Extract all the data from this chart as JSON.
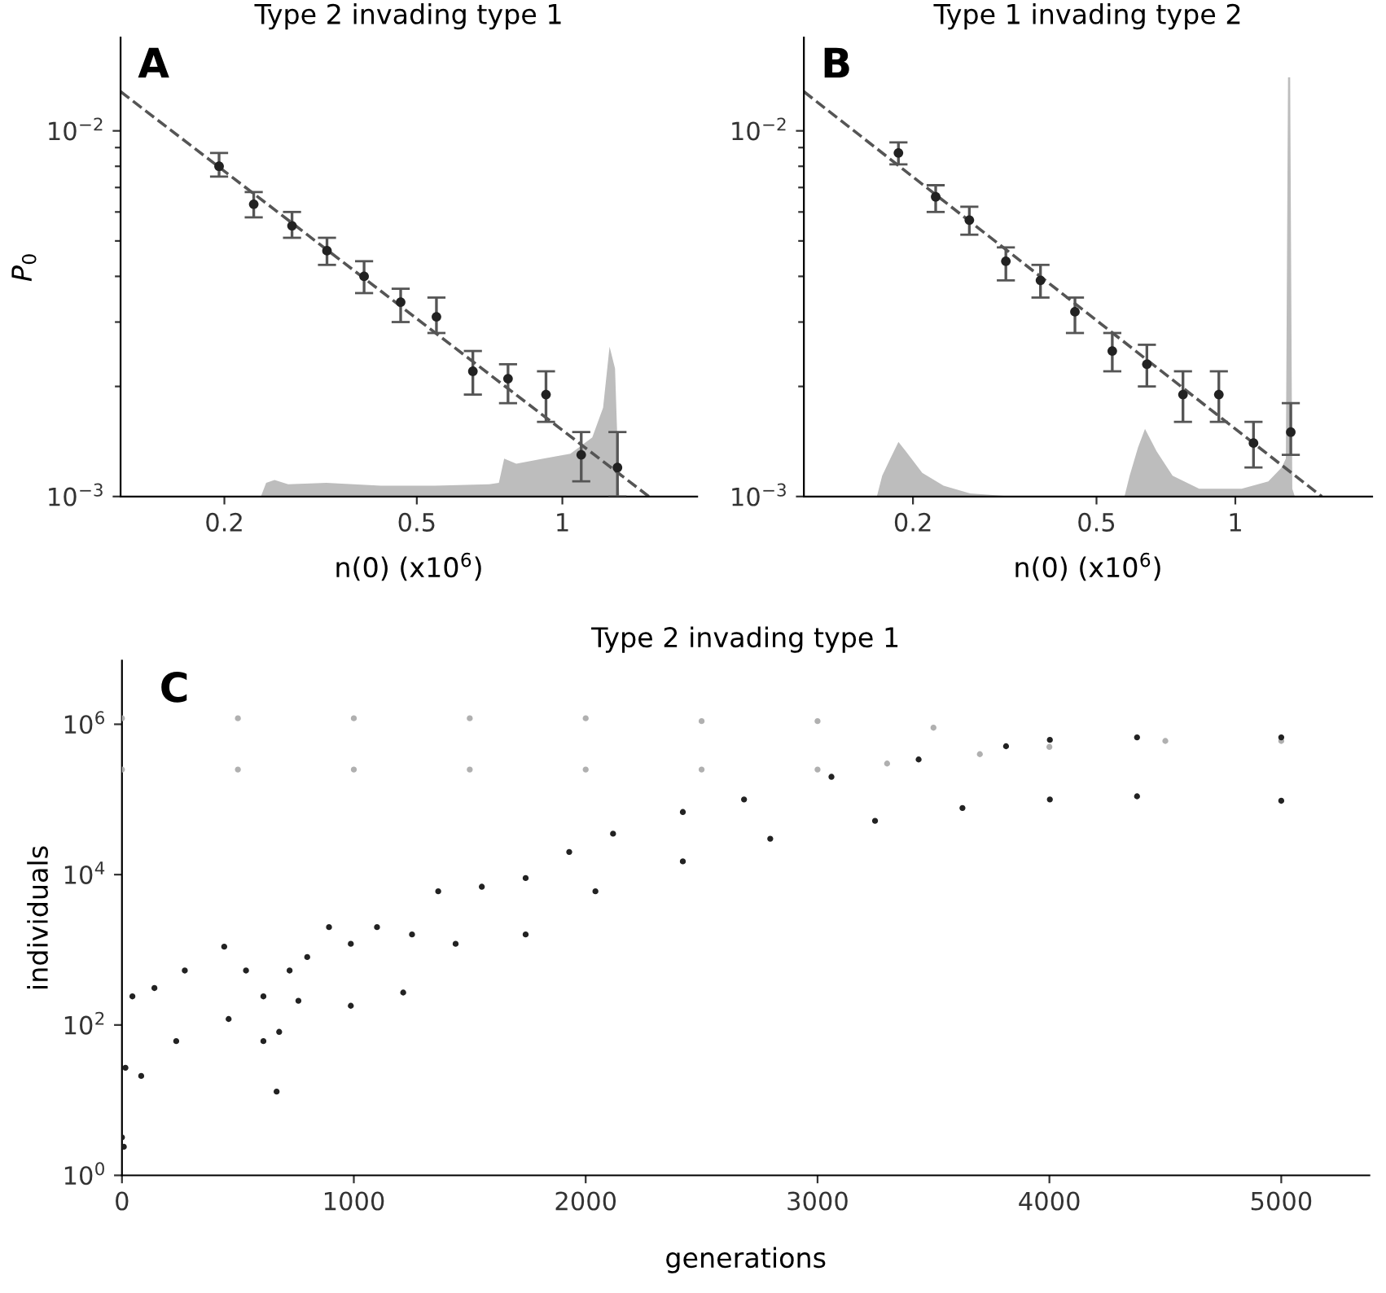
{
  "chart_data": [
    {
      "type": "scatter",
      "title": "Type 2 invading type 1",
      "xlabel": "n(0) (x10$^{6}$)",
      "ylabel": "P$_{0}$",
      "annotations": [
        "A"
      ],
      "log": "xy",
      "xlim": [
        0.122,
        1.9
      ],
      "ylim": [
        0.001,
        0.018
      ],
      "xticks": [
        0.2,
        0.5,
        1
      ],
      "yticks": [
        {
          "value": 0.001,
          "label": "10$^{−3}$"
        },
        {
          "value": 0.002,
          "label": null
        },
        {
          "value": 0.003,
          "label": null
        },
        {
          "value": 0.004,
          "label": null
        },
        {
          "value": 0.005,
          "label": null
        },
        {
          "value": 0.006,
          "label": null
        },
        {
          "value": 0.007,
          "label": null
        },
        {
          "value": 0.008,
          "label": null
        },
        {
          "value": 0.009,
          "label": null
        },
        {
          "value": 0.01,
          "label": "10$^{−2}$"
        }
      ],
      "series": [
        {
          "type": "area",
          "color": "#bdbdbd",
          "x": [
            0.238,
            0.244,
            0.254,
            0.271,
            0.325,
            0.421,
            0.545,
            0.706,
            0.739,
            0.758,
            0.803,
            0.913,
            1.039,
            1.153,
            1.214,
            1.252,
            1.285,
            1.311
          ],
          "values": [
            0.001,
            0.00109,
            0.00111,
            0.00108,
            0.00109,
            0.00107,
            0.00107,
            0.00108,
            0.00109,
            0.00127,
            0.00123,
            0.00127,
            0.00131,
            0.00145,
            0.00175,
            0.00257,
            0.00224,
            0.001
          ]
        },
        {
          "type": "line",
          "color": "#555555",
          "line_style": "dashed",
          "x": [
            0.122,
            1.51
          ],
          "values": [
            0.0128,
            0.001
          ]
        },
        {
          "color": "#222222",
          "marker": "circle",
          "x": [
            0.195,
            0.23,
            0.276,
            0.326,
            0.389,
            0.463,
            0.549,
            0.653,
            0.772,
            0.925,
            1.094,
            1.3
          ],
          "values": [
            0.008,
            0.0063,
            0.0055,
            0.0047,
            0.004,
            0.0034,
            0.0031,
            0.0022,
            0.0021,
            0.0019,
            0.0013,
            0.0012
          ],
          "errors": [
            [
              0.0075,
              0.0087
            ],
            [
              0.0058,
              0.0068
            ],
            [
              0.0051,
              0.006
            ],
            [
              0.0043,
              0.0051
            ],
            [
              0.0036,
              0.0044
            ],
            [
              0.003,
              0.0037
            ],
            [
              0.0028,
              0.0035
            ],
            [
              0.0019,
              0.0025
            ],
            [
              0.0018,
              0.0023
            ],
            [
              0.0016,
              0.0022
            ],
            [
              0.0011,
              0.0015
            ],
            [
              0.001,
              0.0015
            ]
          ]
        }
      ]
    },
    {
      "type": "scatter",
      "title": "Type 1 invading type 2",
      "xlabel": "n(0) (x10$^{6}$)",
      "annotations": [
        "B"
      ],
      "log": "xy",
      "xlim": [
        0.116,
        1.98
      ],
      "ylim": [
        0.001,
        0.018
      ],
      "xticks": [
        0.2,
        0.5,
        1
      ],
      "yticks": [
        {
          "value": 0.001,
          "label": "10$^{−3}$"
        },
        {
          "value": 0.002,
          "label": null
        },
        {
          "value": 0.003,
          "label": null
        },
        {
          "value": 0.004,
          "label": null
        },
        {
          "value": 0.005,
          "label": null
        },
        {
          "value": 0.006,
          "label": null
        },
        {
          "value": 0.007,
          "label": null
        },
        {
          "value": 0.008,
          "label": null
        },
        {
          "value": 0.009,
          "label": null
        },
        {
          "value": 0.01,
          "label": "10$^{−2}$"
        }
      ],
      "series": [
        {
          "type": "area",
          "color": "#bdbdbd",
          "x": [
            0.167,
            0.1715,
            0.1786,
            0.186,
            0.193,
            0.2095,
            0.233,
            0.266,
            0.329,
            0.575,
            0.59,
            0.615,
            0.637,
            0.675,
            0.731,
            0.835,
            1.032,
            1.179,
            1.26,
            1.287,
            1.301,
            1.315,
            1.329,
            1.346
          ],
          "values": [
            0.001,
            0.00114,
            0.00127,
            0.00141,
            0.00133,
            0.00116,
            0.00107,
            0.00102,
            0.001,
            0.001,
            0.00114,
            0.00136,
            0.00153,
            0.00133,
            0.00114,
            0.00105,
            0.00105,
            0.0011,
            0.0012,
            0.00127,
            0.014,
            0.014,
            0.00105,
            0.001
          ]
        },
        {
          "type": "line",
          "color": "#555555",
          "line_style": "dashed",
          "x": [
            0.116,
            1.54
          ],
          "values": [
            0.0128,
            0.001
          ]
        },
        {
          "color": "#222222",
          "marker": "circle",
          "x": [
            0.186,
            0.224,
            0.265,
            0.318,
            0.378,
            0.449,
            0.541,
            0.643,
            0.77,
            0.921,
            1.095,
            1.319
          ],
          "values": [
            0.0087,
            0.0066,
            0.0057,
            0.0044,
            0.0039,
            0.0032,
            0.0025,
            0.0023,
            0.0019,
            0.0019,
            0.0014,
            0.0015
          ],
          "errors": [
            [
              0.0081,
              0.0093
            ],
            [
              0.006,
              0.0071
            ],
            [
              0.0052,
              0.0062
            ],
            [
              0.0039,
              0.0048
            ],
            [
              0.0035,
              0.0043
            ],
            [
              0.0028,
              0.0035
            ],
            [
              0.0022,
              0.0028
            ],
            [
              0.002,
              0.0026
            ],
            [
              0.0016,
              0.0022
            ],
            [
              0.0016,
              0.0022
            ],
            [
              0.0012,
              0.0016
            ],
            [
              0.0013,
              0.0018
            ]
          ]
        }
      ]
    },
    {
      "type": "scatter",
      "title": "Type 2 invading type 1",
      "xlabel": "generations",
      "ylabel": "individuals",
      "annotations": [
        "C"
      ],
      "log": "y",
      "xlim": [
        0,
        5380
      ],
      "ylim": [
        1,
        7000000
      ],
      "xticks": [
        0,
        1000,
        2000,
        3000,
        4000,
        5000
      ],
      "yticks": [
        {
          "value": 1,
          "label": "10$^{0}$"
        },
        {
          "value": 100,
          "label": "10$^{2}$"
        },
        {
          "value": 10000,
          "label": "10$^{4}$"
        },
        {
          "value": 1000000,
          "label": "10$^{6}$"
        }
      ],
      "series": [
        {
          "color": "#b0b0b0",
          "marker": "circle",
          "x": [
            0,
            500,
            1000,
            1500,
            2000,
            2500,
            3000,
            3500,
            4000,
            4500,
            5000,
            0,
            500,
            1000,
            1500,
            2000,
            2500,
            3000,
            3300,
            3700,
            4000
          ],
          "values": [
            1200000,
            1200000,
            1200000,
            1200000,
            1200000,
            1100000,
            1100000,
            900000,
            null,
            600000,
            600000,
            250000,
            250000,
            250000,
            250000,
            250000,
            250000,
            250000,
            300000,
            400000,
            500000
          ]
        },
        {
          "color": "#222222",
          "marker": "circle",
          "x": [
            0,
            15,
            45,
            140,
            271,
            441,
            535,
            610,
            678,
            723,
            799,
            893,
            987,
            1100,
            1251,
            1364,
            1552,
            1741,
            1929,
            2118,
            2419,
            2683,
            3060,
            3436,
            3813,
            4002,
            4378,
            5000,
            8,
            83,
            234,
            460,
            610,
            667,
            761,
            987,
            1213,
            1439,
            1741,
            2042,
            2419,
            2796,
            3248,
            3625,
            4002,
            4378,
            5000
          ],
          "values": [
            3.2,
            27,
            240,
            310,
            530,
            1100,
            530,
            240,
            81,
            530,
            800,
            2000,
            1200,
            2000,
            1600,
            6000,
            6900,
            9000,
            20000,
            35000,
            68000,
            100000,
            200000,
            340000,
            510000,
            620000,
            670000,
            670000,
            2.4,
            21,
            61,
            120,
            61,
            13,
            210,
            180,
            270,
            1200,
            1600,
            6000,
            15000,
            30000,
            52000,
            77000,
            100000,
            110000,
            96000
          ]
        }
      ]
    }
  ]
}
